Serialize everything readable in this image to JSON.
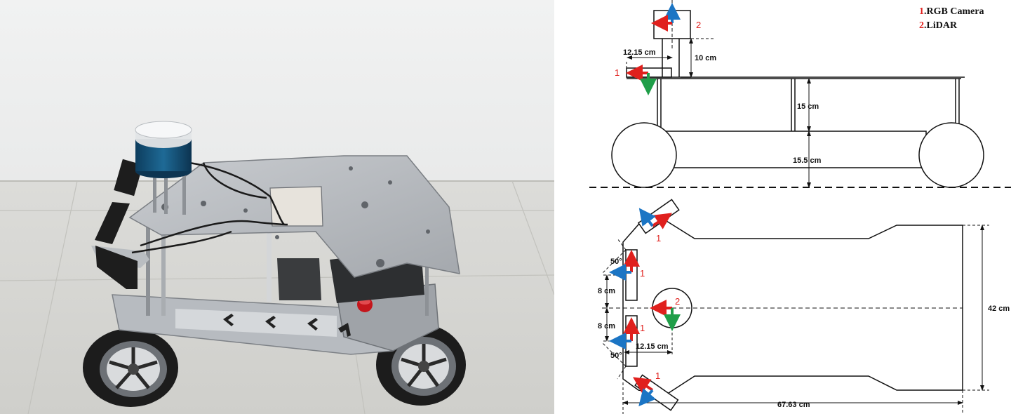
{
  "legend": {
    "item1_num": "1",
    "item1_text": ".RGB Camera",
    "item2_num": "2",
    "item2_text": ".LiDAR"
  },
  "side_view": {
    "lidar_num": "2",
    "camera_num": "1",
    "dim_offset": "12.15 cm",
    "dim_height_lidar": "10 cm",
    "dim_body_height": "15 cm",
    "dim_ground_clearance": "15.5 cm"
  },
  "top_view": {
    "cam_front_left_num": "1",
    "cam_left_num": "1",
    "lidar_num": "2",
    "cam_right_num": "1",
    "cam_front_right_num": "1",
    "angle_top": "50°",
    "angle_bottom": "50°",
    "dim_spacing_top": "8 cm",
    "dim_spacing_bottom": "8 cm",
    "dim_offset": "12.15 cm",
    "dim_width": "42 cm",
    "dim_length": "67.63 cm"
  },
  "colors": {
    "axis_x": "#e0201d",
    "axis_y": "#1b75c4",
    "axis_z": "#1f9e48",
    "annotation": "#e0201d"
  }
}
